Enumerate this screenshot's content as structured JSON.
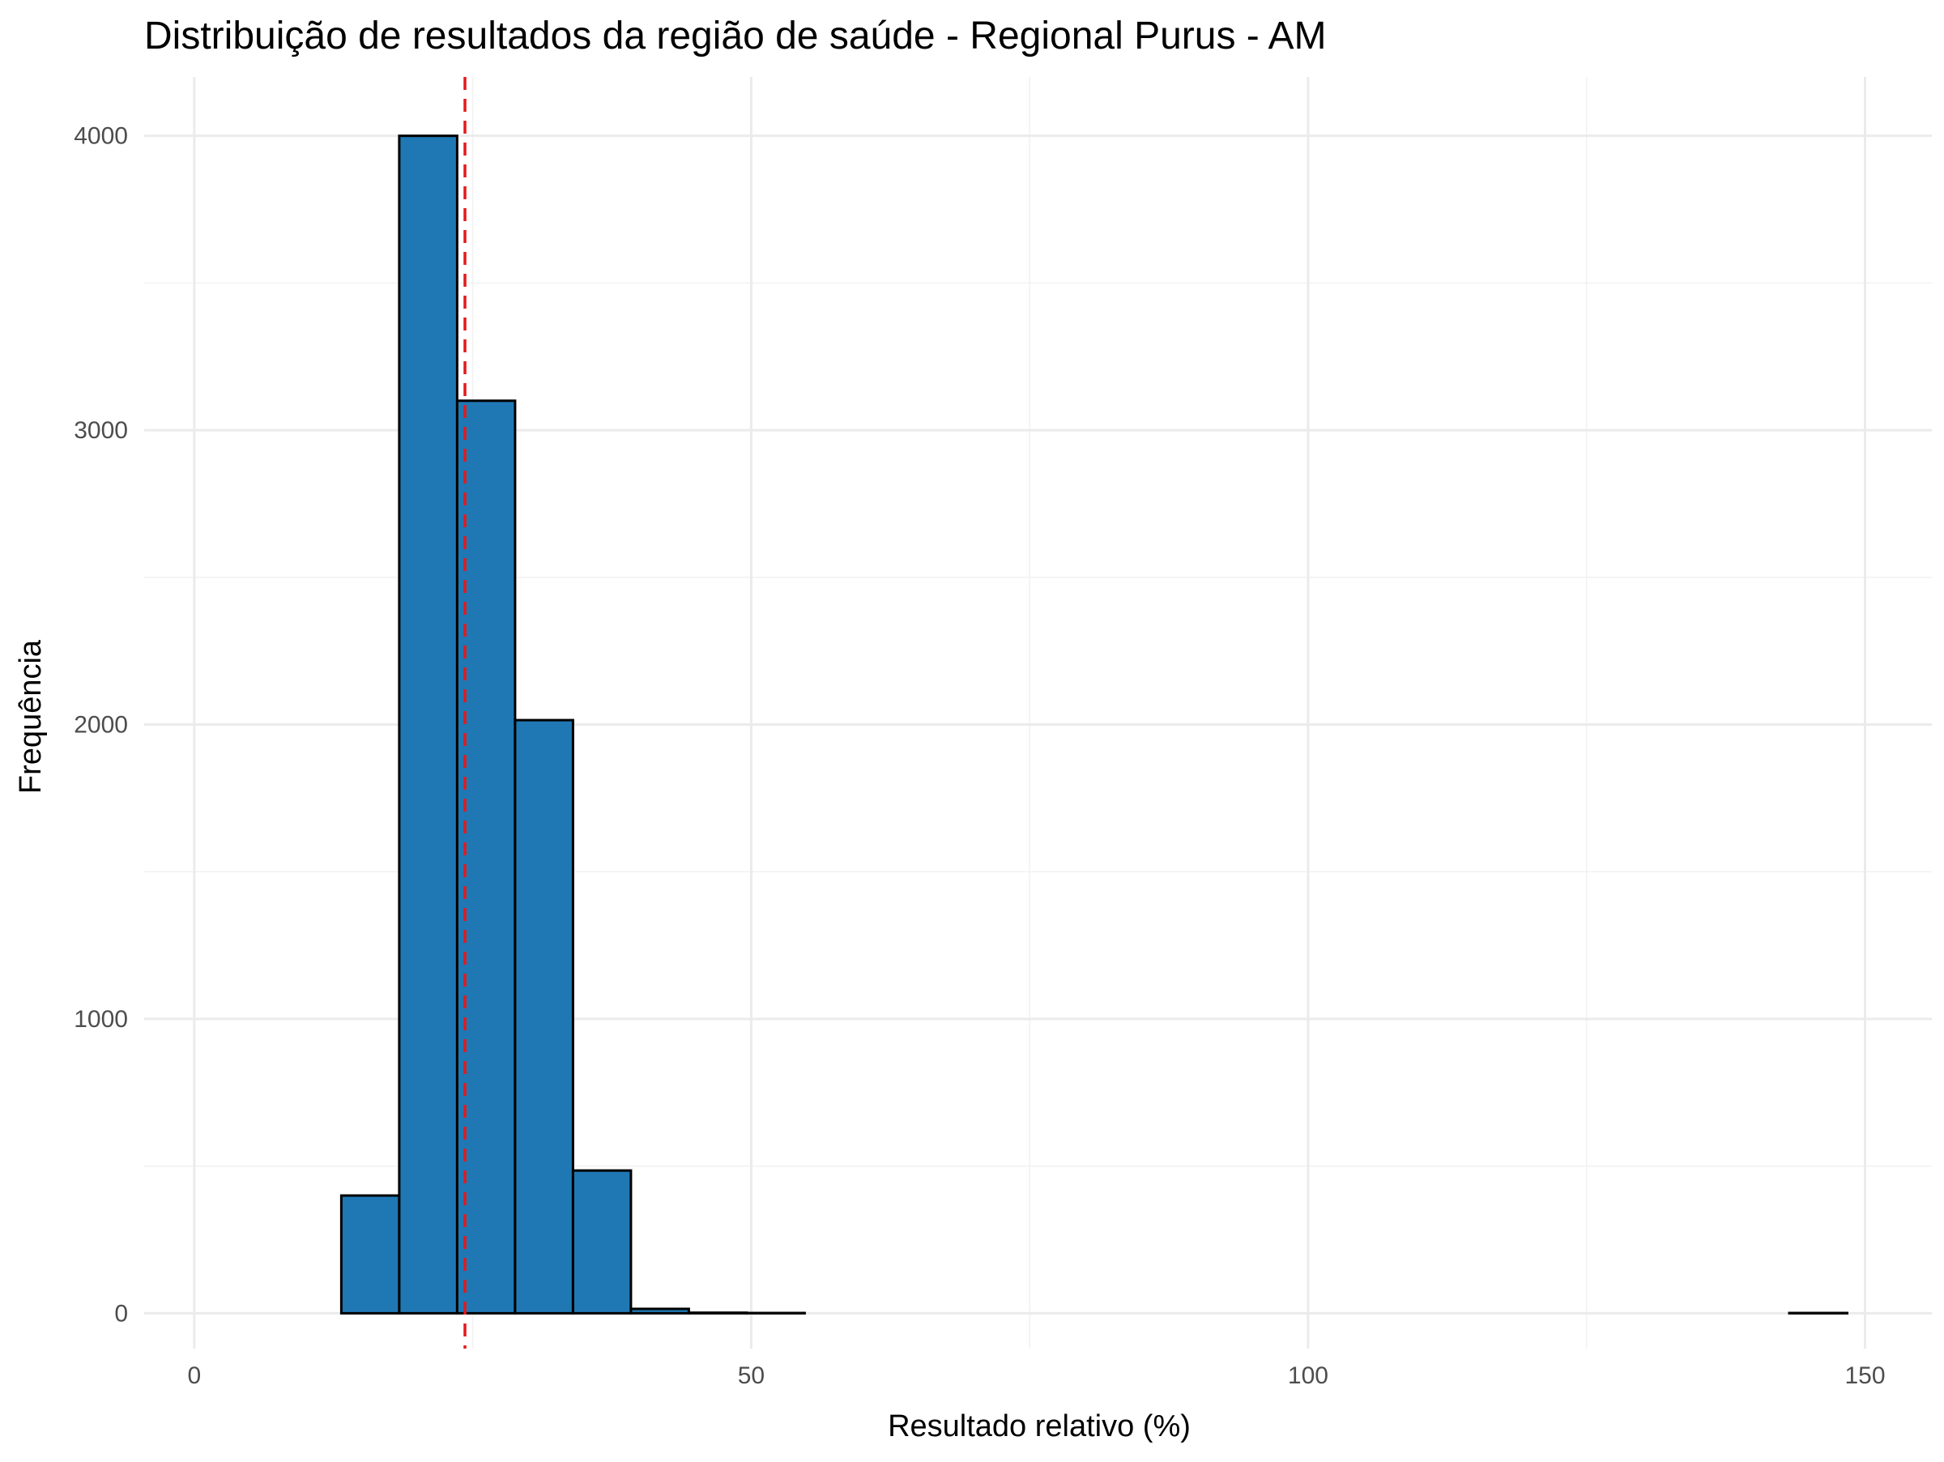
{
  "chart_data": {
    "type": "bar",
    "title": "Distribuição de resultados da região de saúde - Regional Purus - AM",
    "xlabel": "Resultado relativo (%)",
    "ylabel": "Frequência",
    "xlim": [
      -4.5,
      156
    ],
    "ylim": [
      -120,
      4200
    ],
    "x_ticks": [
      0,
      50,
      100,
      150
    ],
    "y_ticks": [
      0,
      1000,
      2000,
      3000,
      4000
    ],
    "x_minor_ticks": [
      25,
      75,
      125
    ],
    "y_minor_ticks": [
      500,
      1500,
      2500,
      3500
    ],
    "grid": true,
    "legend": "none",
    "bin_width": 5.2,
    "bins": [
      {
        "start": 2.8,
        "end": 8.0,
        "count": 0
      },
      {
        "start": 8.0,
        "end": 13.2,
        "count": 0
      },
      {
        "start": 13.2,
        "end": 18.4,
        "count": 400
      },
      {
        "start": 18.4,
        "end": 23.6,
        "count": 4000
      },
      {
        "start": 23.6,
        "end": 28.8,
        "count": 3100
      },
      {
        "start": 28.8,
        "end": 34.0,
        "count": 2015
      },
      {
        "start": 34.0,
        "end": 39.2,
        "count": 485
      },
      {
        "start": 39.2,
        "end": 44.4,
        "count": 15
      },
      {
        "start": 44.4,
        "end": 49.6,
        "count": 2
      },
      {
        "start": 49.6,
        "end": 54.8,
        "count": 1
      },
      {
        "start": 54.8,
        "end": 60.0,
        "count": 0
      },
      {
        "start": 60.0,
        "end": 65.2,
        "count": 0
      },
      {
        "start": 65.2,
        "end": 70.4,
        "count": 0
      },
      {
        "start": 70.4,
        "end": 75.6,
        "count": 0
      },
      {
        "start": 75.6,
        "end": 80.8,
        "count": 0
      },
      {
        "start": 80.8,
        "end": 86.0,
        "count": 0
      },
      {
        "start": 86.0,
        "end": 91.2,
        "count": 0
      },
      {
        "start": 91.2,
        "end": 96.4,
        "count": 0
      },
      {
        "start": 96.4,
        "end": 101.6,
        "count": 0
      },
      {
        "start": 101.6,
        "end": 106.8,
        "count": 0
      },
      {
        "start": 106.8,
        "end": 112.0,
        "count": 0
      },
      {
        "start": 112.0,
        "end": 117.2,
        "count": 0
      },
      {
        "start": 117.2,
        "end": 122.4,
        "count": 0
      },
      {
        "start": 122.4,
        "end": 127.6,
        "count": 0
      },
      {
        "start": 127.6,
        "end": 132.8,
        "count": 0
      },
      {
        "start": 132.8,
        "end": 138.0,
        "count": 0
      },
      {
        "start": 138.0,
        "end": 143.2,
        "count": 0
      },
      {
        "start": 143.2,
        "end": 148.4,
        "count": 1
      }
    ],
    "mean_line": {
      "x": 24.3,
      "style": "dashed",
      "color": "#e41a1c"
    },
    "colors": {
      "bar_fill": "#1f78b4",
      "bar_stroke": "#000000",
      "grid": "#ebebeb",
      "tick_text": "#4d4d4d"
    }
  }
}
